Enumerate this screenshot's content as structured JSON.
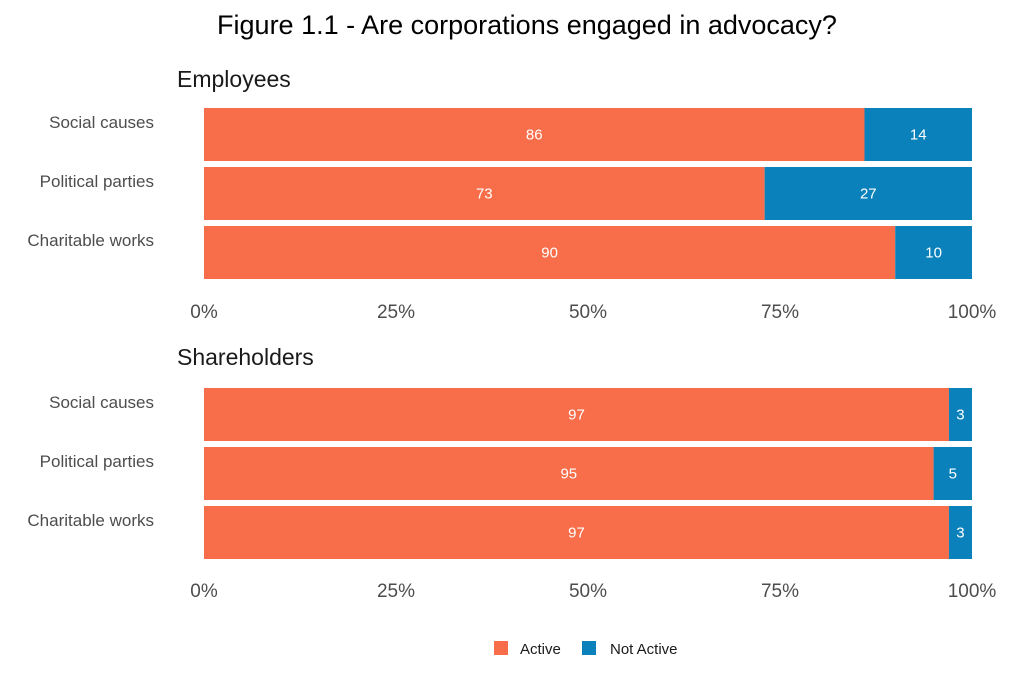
{
  "chart_data": {
    "type": "bar",
    "orientation": "horizontal",
    "stacked": true,
    "title": "Figure 1.1 - Are corporations engaged in advocacy?",
    "colors": {
      "Active": "#F86E4A",
      "Not Active": "#0A81BA"
    },
    "legend": {
      "position": "bottom",
      "entries": [
        "Active",
        "Not Active"
      ]
    },
    "x_ticks": [
      "0%",
      "25%",
      "50%",
      "75%",
      "100%"
    ],
    "xlim": [
      0,
      100
    ],
    "grid": false,
    "panels": [
      {
        "title": "Employees",
        "categories": [
          "Social causes",
          "Political parties",
          "Charitable works"
        ],
        "series": [
          {
            "name": "Active",
            "values": [
              86,
              73,
              90
            ]
          },
          {
            "name": "Not Active",
            "values": [
              14,
              27,
              10
            ]
          }
        ]
      },
      {
        "title": "Shareholders",
        "categories": [
          "Social causes",
          "Political parties",
          "Charitable works"
        ],
        "series": [
          {
            "name": "Active",
            "values": [
              97,
              95,
              97
            ]
          },
          {
            "name": "Not Active",
            "values": [
              3,
              5,
              3
            ]
          }
        ]
      }
    ]
  }
}
